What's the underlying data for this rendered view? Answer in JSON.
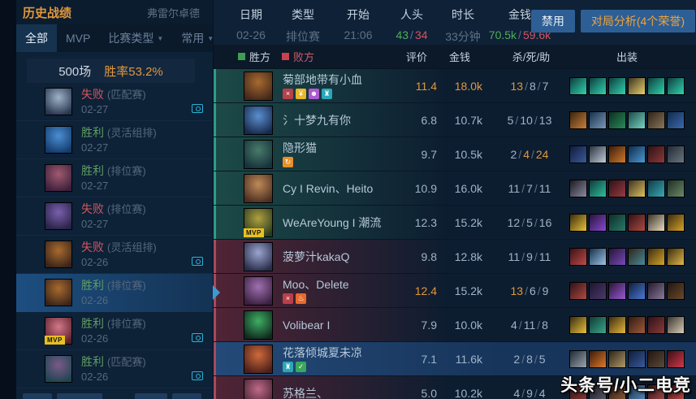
{
  "labels": {
    "mvp": "MVP"
  },
  "sep": "/",
  "colors": {
    "win_green": "#4cae5a",
    "lose_red": "#d25660",
    "accent_orange": "#e2973b",
    "win_square": "#3f9e52",
    "lose_square": "#c9414e"
  },
  "sidebar": {
    "title": "历史战绩",
    "region": "弗雷尔卓德",
    "caret_glyph": "▼",
    "tabs": [
      {
        "label": "全部",
        "active": true,
        "caret": false
      },
      {
        "label": "MVP",
        "active": false,
        "caret": false
      },
      {
        "label": "比赛类型",
        "active": false,
        "caret": true
      },
      {
        "label": "常用",
        "active": false,
        "caret": true
      }
    ],
    "summary": {
      "games": "500场",
      "winrate": "胜率53.2%"
    },
    "matches": [
      {
        "result": "失败",
        "type": "lose",
        "queue": "(匹配赛)",
        "date": "02-27",
        "replay": true,
        "mvp": false,
        "selected": false,
        "icon": [
          "#27354f",
          "#9fb3c8"
        ]
      },
      {
        "result": "胜利",
        "type": "win",
        "queue": "(灵活组排)",
        "date": "02-27",
        "replay": false,
        "mvp": false,
        "selected": false,
        "icon": [
          "#143a6a",
          "#4a8fd4"
        ]
      },
      {
        "result": "胜利",
        "type": "win",
        "queue": "(排位赛)",
        "date": "02-27",
        "replay": false,
        "mvp": false,
        "selected": false,
        "icon": [
          "#3d1f3a",
          "#a05a70"
        ]
      },
      {
        "result": "失败",
        "type": "lose",
        "queue": "(排位赛)",
        "date": "02-27",
        "replay": false,
        "mvp": false,
        "selected": false,
        "icon": [
          "#2a2347",
          "#7a5fae"
        ]
      },
      {
        "result": "失败",
        "type": "lose",
        "queue": "(灵活组排)",
        "date": "02-26",
        "replay": true,
        "mvp": false,
        "selected": false,
        "icon": [
          "#3a2418",
          "#a86a30"
        ]
      },
      {
        "result": "胜利",
        "type": "win",
        "queue": "(排位赛)",
        "date": "02-26",
        "replay": false,
        "mvp": false,
        "selected": true,
        "icon": [
          "#3a2418",
          "#a86a30"
        ]
      },
      {
        "result": "胜利",
        "type": "win",
        "queue": "(排位赛)",
        "date": "02-26",
        "replay": true,
        "mvp": true,
        "selected": false,
        "icon": [
          "#5a1f28",
          "#d4788a"
        ]
      },
      {
        "result": "胜利",
        "type": "win",
        "queue": "(匹配赛)",
        "date": "02-26",
        "replay": true,
        "mvp": false,
        "selected": false,
        "icon": [
          "#1f4450",
          "#7a5a8a"
        ]
      }
    ]
  },
  "header": {
    "columns": [
      {
        "label": "日期",
        "value": "02-26"
      },
      {
        "label": "类型",
        "value": "排位赛"
      },
      {
        "label": "开始",
        "value": "21:06"
      },
      {
        "label": "人头",
        "parts": {
          "win": "43",
          "lose": "34"
        }
      },
      {
        "label": "时长",
        "value": "33分钟"
      },
      {
        "label": "金钱",
        "parts": {
          "win": "70.5k",
          "lose": "59.6k"
        }
      }
    ],
    "ban_button": "禁用",
    "analysis_button": "对局分析(4个荣誉)"
  },
  "table": {
    "legend_win": "胜方",
    "legend_lose": "败方",
    "col_rating": "评价",
    "col_gold": "金钱",
    "col_kda": "杀/死/助",
    "col_items": "出装",
    "players": [
      {
        "name": "菊部地带有小血",
        "team": "win",
        "rating": "11.4",
        "rating_hl": true,
        "gold": "18.0k",
        "gold_hl": true,
        "k": "13",
        "d": "8",
        "a": "7",
        "k_hl": true,
        "d_hl": false,
        "a_hl": false,
        "mvp": false,
        "selected": false,
        "badges": [
          {
            "bg": "#b8404a",
            "glyph": "×"
          },
          {
            "bg": "#e8b82a",
            "glyph": "¥"
          },
          {
            "bg": "#b05ad0",
            "glyph": "☻"
          },
          {
            "bg": "#2aa8b8",
            "glyph": "♜"
          }
        ],
        "icon": [
          "#42281a",
          "#a86a30"
        ],
        "items": [
          [
            "#0e3c3c",
            "#2fd4b0"
          ],
          [
            "#0e3c3c",
            "#2fd4b0"
          ],
          [
            "#0e3c3c",
            "#2fd4b0"
          ],
          [
            "#3a3322",
            "#e8d06a"
          ],
          [
            "#0e3c3c",
            "#2fd4b0"
          ],
          [
            "#0e3c3c",
            "#2fd4b0"
          ]
        ]
      },
      {
        "name": "氵十梦九有你",
        "team": "win",
        "rating": "6.8",
        "rating_hl": false,
        "gold": "10.7k",
        "gold_hl": false,
        "k": "5",
        "d": "10",
        "a": "13",
        "k_hl": false,
        "d_hl": false,
        "a_hl": false,
        "mvp": false,
        "selected": false,
        "badges": [],
        "icon": [
          "#16294a",
          "#5a8fd0"
        ],
        "items": [
          [
            "#3a2410",
            "#c87f3a"
          ],
          [
            "#16304a",
            "#7a9ab8"
          ],
          [
            "#0c2e22",
            "#2a8a5a"
          ],
          [
            "#1a4a4a",
            "#7ad4c0"
          ],
          [
            "#2e2418",
            "#8a765a"
          ],
          [
            "#122a4a",
            "#3a6ab0"
          ]
        ]
      },
      {
        "name": "隐形猫",
        "team": "win",
        "rating": "9.7",
        "rating_hl": false,
        "gold": "10.5k",
        "gold_hl": false,
        "k": "2",
        "d": "4",
        "a": "24",
        "k_hl": false,
        "d_hl": true,
        "a_hl": true,
        "mvp": false,
        "selected": false,
        "badges": [
          {
            "bg": "#e8902a",
            "glyph": "↻"
          }
        ],
        "icon": [
          "#15323a",
          "#4a7a6a"
        ],
        "items": [
          [
            "#101c3a",
            "#3a5a9a"
          ],
          [
            "#2a3440",
            "#c0ccd8"
          ],
          [
            "#3a1c0c",
            "#d07a2a"
          ],
          [
            "#0f2a4a",
            "#4a9ad4"
          ],
          [
            "#2e1216",
            "#8a3a3a"
          ],
          [
            "#222a33",
            "#6a7682"
          ]
        ]
      },
      {
        "name": "Cy I Revin、Heito",
        "team": "win",
        "rating": "10.9",
        "rating_hl": false,
        "gold": "16.0k",
        "gold_hl": false,
        "k": "11",
        "d": "7",
        "a": "11",
        "k_hl": false,
        "d_hl": false,
        "a_hl": false,
        "mvp": false,
        "selected": false,
        "badges": [],
        "icon": [
          "#4a2e20",
          "#c08a5a"
        ],
        "items": [
          [
            "#1a1a22",
            "#8a8aa0"
          ],
          [
            "#0f3a3a",
            "#2fbfa0"
          ],
          [
            "#2e1216",
            "#9a3a42"
          ],
          [
            "#3a3322",
            "#e0c060"
          ],
          [
            "#0f3a42",
            "#3aa8b8"
          ],
          [
            "#1f2e22",
            "#6a8a6a"
          ]
        ]
      },
      {
        "name": "WeAreYoung I 潮流",
        "team": "win",
        "rating": "12.3",
        "rating_hl": false,
        "gold": "15.2k",
        "gold_hl": false,
        "k": "12",
        "d": "5",
        "a": "16",
        "k_hl": false,
        "d_hl": false,
        "a_hl": false,
        "mvp": true,
        "selected": false,
        "badges": [],
        "icon": [
          "#2a3a1f",
          "#b0a040"
        ],
        "items": [
          [
            "#3a2c10",
            "#e8c23a"
          ],
          [
            "#241438",
            "#8a4ad0"
          ],
          [
            "#0c2e2a",
            "#2a7a6a"
          ],
          [
            "#2e1216",
            "#b04a42"
          ],
          [
            "#3a3428",
            "#e8dcc0"
          ],
          [
            "#3a2a10",
            "#d4a42a"
          ]
        ]
      },
      {
        "name": "菠萝汁kakaQ",
        "team": "lose",
        "rating": "9.8",
        "rating_hl": false,
        "gold": "12.8k",
        "gold_hl": false,
        "k": "11",
        "d": "9",
        "a": "11",
        "k_hl": false,
        "d_hl": false,
        "a_hl": false,
        "mvp": false,
        "selected": false,
        "badges": [],
        "icon": [
          "#2a2d4a",
          "#9aa5d0"
        ],
        "items": [
          [
            "#3a1216",
            "#c04a4a"
          ],
          [
            "#16304a",
            "#9ac4e8"
          ],
          [
            "#241438",
            "#7a4ab8"
          ],
          [
            "#2e2418",
            "#4a8a9a"
          ],
          [
            "#3a2c10",
            "#d4a42a"
          ],
          [
            "#3a2c10",
            "#e0b84a"
          ]
        ]
      },
      {
        "name": "Moo、Delete",
        "team": "lose",
        "rating": "12.4",
        "rating_hl": true,
        "gold": "15.2k",
        "gold_hl": false,
        "k": "13",
        "d": "6",
        "a": "9",
        "k_hl": true,
        "d_hl": false,
        "a_hl": false,
        "mvp": false,
        "selected": false,
        "badges": [
          {
            "bg": "#b8404a",
            "glyph": "×"
          },
          {
            "bg": "#e86a2a",
            "glyph": "♨"
          }
        ],
        "icon": [
          "#3a2040",
          "#a070b0"
        ],
        "items": [
          [
            "#2e1216",
            "#b04a42"
          ],
          [
            "#1f1430",
            "#4a3a6a"
          ],
          [
            "#2a1438",
            "#9a5ad4"
          ],
          [
            "#101c3a",
            "#4a7ad4"
          ],
          [
            "#241a2e",
            "#8a7a9a"
          ],
          [
            "#221610",
            "#6a4a2a"
          ]
        ]
      },
      {
        "name": "Volibear I",
        "team": "lose",
        "rating": "7.9",
        "rating_hl": false,
        "gold": "10.0k",
        "gold_hl": false,
        "k": "4",
        "d": "11",
        "a": "8",
        "k_hl": false,
        "d_hl": false,
        "a_hl": false,
        "mvp": false,
        "selected": false,
        "badges": [],
        "icon": [
          "#0f2a1f",
          "#3fae62"
        ],
        "items": [
          [
            "#3a2c10",
            "#e8c23a"
          ],
          [
            "#0f3a36",
            "#3aa88a"
          ],
          [
            "#3a2a10",
            "#e8b83a"
          ],
          [
            "#2e1a12",
            "#a05a3a"
          ],
          [
            "#2e1216",
            "#8a3a3a"
          ],
          [
            "#3a342c",
            "#d8ccb8"
          ]
        ]
      },
      {
        "name": "花落倾城夏未凉",
        "team": "lose",
        "rating": "7.1",
        "rating_hl": false,
        "gold": "11.6k",
        "gold_hl": false,
        "k": "2",
        "d": "8",
        "a": "5",
        "k_hl": false,
        "d_hl": false,
        "a_hl": false,
        "mvp": false,
        "selected": true,
        "badges": [
          {
            "bg": "#2aa8b8",
            "glyph": "♜"
          },
          {
            "bg": "#3aa85a",
            "glyph": "✓"
          }
        ],
        "icon": [
          "#4a1f1a",
          "#cf6a3a"
        ],
        "items": [
          [
            "#222a33",
            "#9aa4b0"
          ],
          [
            "#3a1a0c",
            "#e07a2a"
          ],
          [
            "#2e2418",
            "#b09a6a"
          ],
          [
            "#101c3a",
            "#3a5a9a"
          ],
          [
            "#221610",
            "#5a4a3a"
          ],
          [
            "#3a0f16",
            "#d03a4a"
          ]
        ]
      },
      {
        "name": "苏格兰、",
        "team": "lose",
        "rating": "5.0",
        "rating_hl": false,
        "gold": "10.2k",
        "gold_hl": false,
        "k": "4",
        "d": "9",
        "a": "4",
        "k_hl": false,
        "d_hl": false,
        "a_hl": false,
        "mvp": false,
        "selected": false,
        "badges": [],
        "icon": [
          "#42202e",
          "#c06a8a"
        ],
        "items": [
          [
            "#2e1216",
            "#8a3a3a"
          ],
          [
            "#1a1a22",
            "#5a5a6a"
          ],
          [
            "#2e1a12",
            "#8a5a3a"
          ],
          [
            "#16304a",
            "#5a8ab8"
          ],
          [
            "#2e1216",
            "#a04a4a"
          ],
          [
            "#3a1216",
            "#c04a4a"
          ]
        ]
      }
    ]
  },
  "watermark": "头条号/小二电竞"
}
